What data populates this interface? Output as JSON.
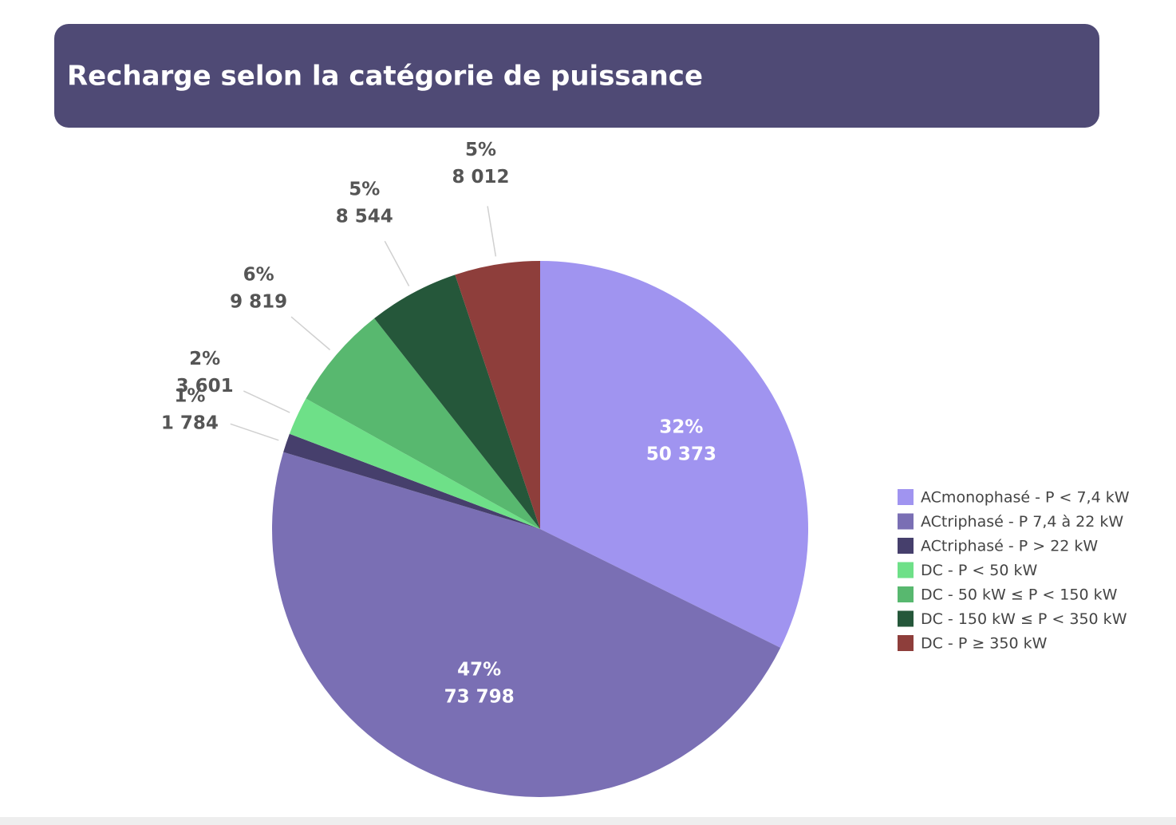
{
  "chart_data": {
    "type": "pie",
    "title": "Recharge selon la catégorie de puissance",
    "categories": [
      "ACmonophasé - P < 7,4 kW",
      "ACtriphasé - P 7,4 à 22 kW",
      "ACtriphasé - P > 22 kW",
      "DC - P < 50 kW",
      "DC - 50 kW ≤ P < 150 kW",
      "DC - 150 kW  ≤ P < 350 kW",
      "DC - P ≥ 350 kW"
    ],
    "values": [
      50373,
      73798,
      1784,
      3601,
      9819,
      8544,
      8012
    ],
    "value_labels": [
      "50 373",
      "73 798",
      "1 784",
      "3 601",
      "9 819",
      "8 544",
      "8 012"
    ],
    "percent_labels": [
      "32%",
      "47%",
      "1%",
      "2%",
      "6%",
      "5%",
      "5%"
    ],
    "colors": [
      "#a094f0",
      "#7a6fb4",
      "#463f6c",
      "#6ee088",
      "#58b86f",
      "#25573a",
      "#8e3e3b"
    ],
    "legend": "right"
  }
}
